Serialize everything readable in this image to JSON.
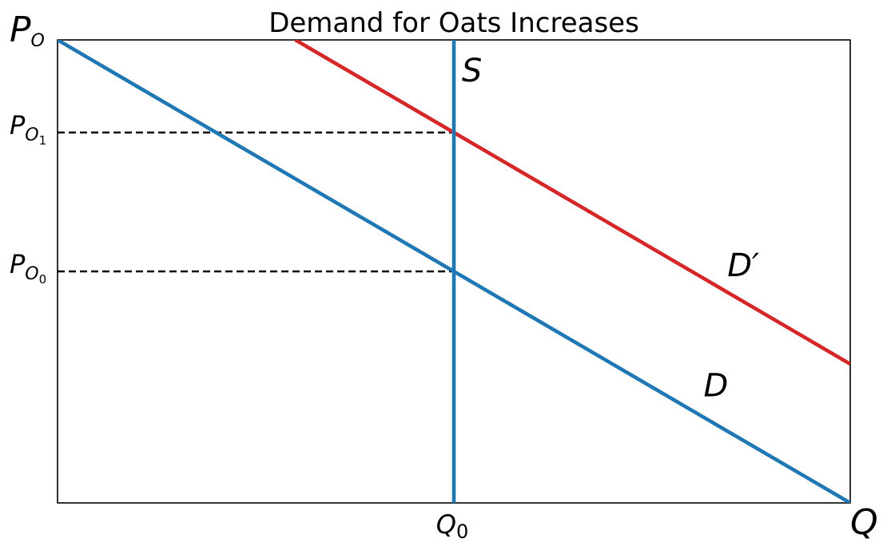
{
  "chart_data": {
    "type": "line",
    "title": "Demand for Oats Increases",
    "xlabel": "Q",
    "ylabel": "P",
    "ylabel_subscript": "O",
    "xlim": [
      0,
      10
    ],
    "ylim": [
      0,
      10
    ],
    "grid": false,
    "series": [
      {
        "name": "D",
        "color": "#1f77b4",
        "x": [
          0,
          10
        ],
        "y": [
          10,
          0
        ]
      },
      {
        "name": "D",
        "name_suffix": "′",
        "color": "#d62728",
        "x": [
          3,
          10
        ],
        "y": [
          10,
          3
        ]
      },
      {
        "name": "S",
        "color": "#1f77b4",
        "x": [
          5,
          5
        ],
        "y": [
          0,
          10
        ]
      }
    ],
    "reference_lines": [
      {
        "style": "dashed",
        "color": "#000000",
        "x": [
          0,
          5
        ],
        "y": [
          8,
          8
        ]
      },
      {
        "style": "dashed",
        "color": "#000000",
        "x": [
          0,
          5
        ],
        "y": [
          5,
          5
        ]
      }
    ],
    "x_ticks": [
      {
        "value": 5,
        "base": "Q",
        "sub": "0"
      }
    ],
    "y_ticks": [
      {
        "value": 8,
        "base": "P",
        "sub": "O",
        "subsub": "1"
      },
      {
        "value": 5,
        "base": "P",
        "sub": "O",
        "subsub": "0"
      }
    ],
    "curve_labels": [
      {
        "text": "S",
        "suffix": "",
        "x": 5.1,
        "y": 9.1
      },
      {
        "text": "D",
        "suffix": "′",
        "x": 8.45,
        "y": 4.9
      },
      {
        "text": "D",
        "suffix": "",
        "x": 8.15,
        "y": 2.3
      }
    ]
  }
}
